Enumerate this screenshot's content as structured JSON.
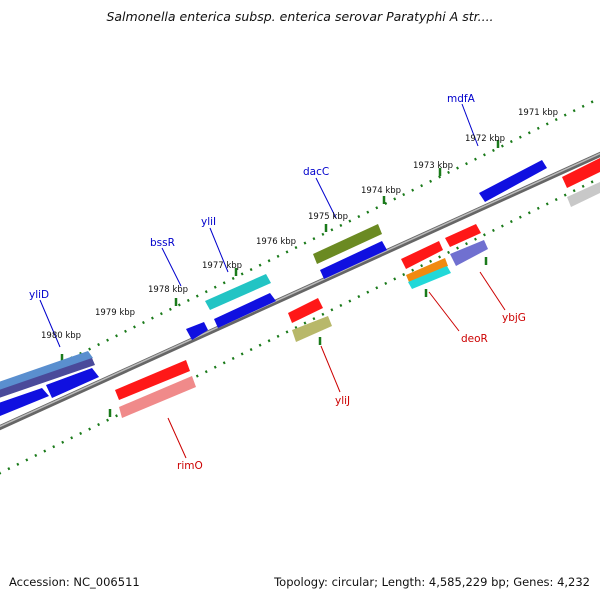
{
  "title": "Salmonella enterica subsp. enterica serovar Paratyphi A str....",
  "footer": {
    "accession": "Accession: NC_006511",
    "summary": "Topology: circular; Length: 4,585,229 bp; Genes: 4,232"
  },
  "colors": {
    "backbone": "#777777",
    "ticks": "#1a7a1a",
    "forward_label": "#0000cc",
    "reverse_label": "#cc0000"
  },
  "kbp_labels": [
    "1971 kbp",
    "1972 kbp",
    "1973 kbp",
    "1974 kbp",
    "1975 kbp",
    "1976 kbp",
    "1977 kbp",
    "1978 kbp",
    "1979 kbp",
    "1980 kbp"
  ],
  "gene_labels": {
    "forward": [
      "yliD",
      "bssR",
      "yliI",
      "dacC",
      "mdfA"
    ],
    "reverse": [
      "rimO",
      "yliJ",
      "deoR",
      "ybjG"
    ]
  }
}
